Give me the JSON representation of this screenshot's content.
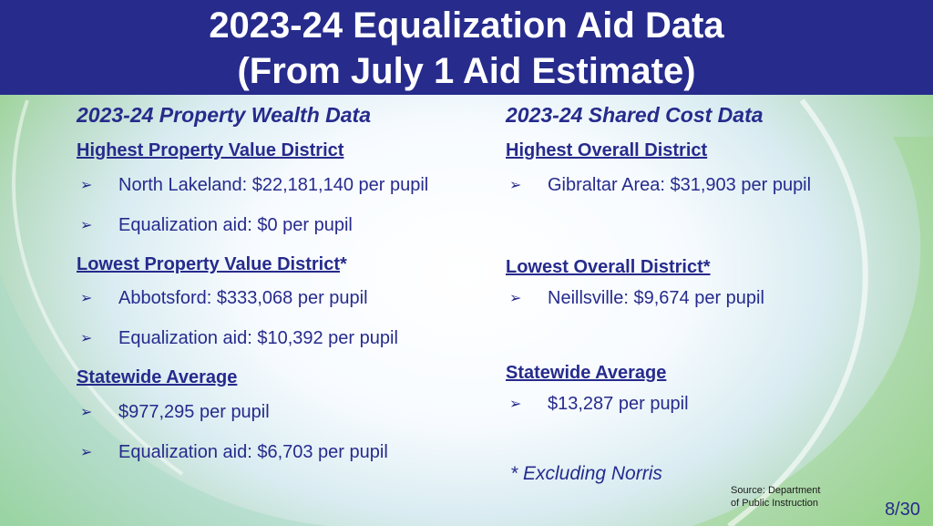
{
  "header": {
    "title_line1": "2023-24 Equalization Aid Data",
    "title_line2": "(From July 1 Aid Estimate)"
  },
  "left": {
    "title": "2023-24 Property Wealth Data",
    "highest_label": "Highest Property Value District",
    "highest_items": [
      "North Lakeland: $22,181,140 per pupil",
      "Equalization aid: $0 per pupil"
    ],
    "lowest_label": "Lowest Property Value District",
    "lowest_asterisk": "*",
    "lowest_items": [
      "Abbotsford: $333,068 per pupil",
      "Equalization aid: $10,392 per pupil"
    ],
    "average_label": "Statewide Average",
    "average_items": [
      "$977,295 per pupil",
      "Equalization aid: $6,703 per pupil"
    ]
  },
  "right": {
    "title": "2023-24 Shared Cost Data",
    "highest_label": "Highest Overall District",
    "highest_items": [
      "Gibraltar Area: $31,903 per pupil"
    ],
    "lowest_label": "Lowest Overall District*",
    "lowest_items": [
      "Neillsville: $9,674 per pupil"
    ],
    "average_label": "Statewide Average",
    "average_items": [
      "$13,287 per pupil"
    ]
  },
  "footnote": "* Excluding Norris",
  "source_line1": "Source: Department",
  "source_line2": "of Public Instruction",
  "page_number": "8/30",
  "bullet_glyph": "➢",
  "colors": {
    "header_bg": "#262b8c",
    "text": "#262b8c",
    "accent_green": "#8fcf83"
  }
}
